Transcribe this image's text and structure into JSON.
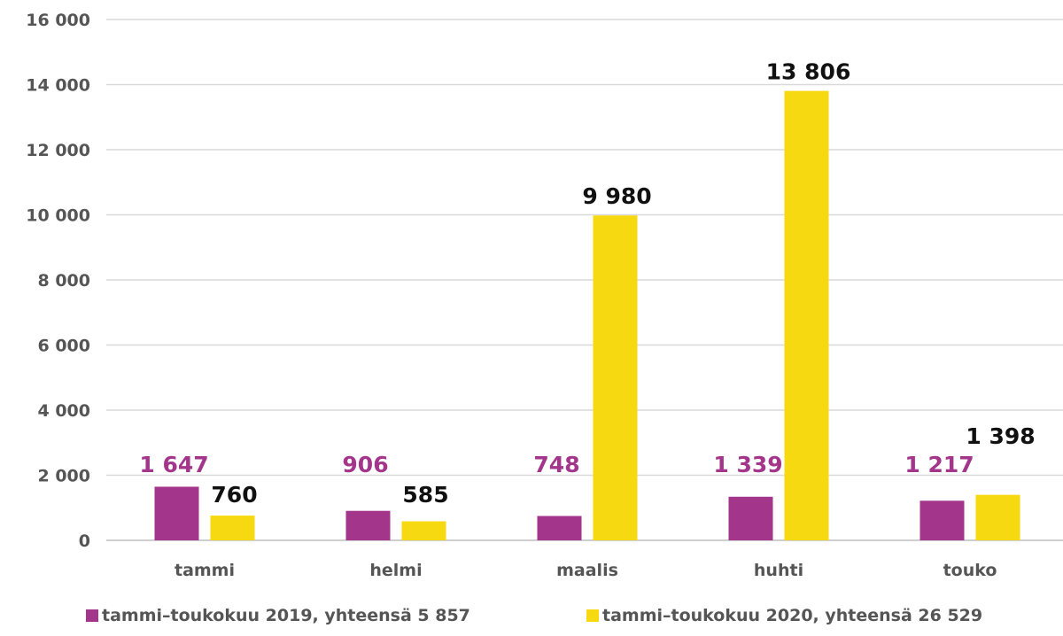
{
  "chart_data": {
    "type": "bar",
    "title": "",
    "xlabel": "",
    "ylabel": "",
    "categories": [
      "tammi",
      "helmi",
      "maalis",
      "huhti",
      "touko"
    ],
    "ylim": [
      0,
      16000
    ],
    "yticks": [
      0,
      2000,
      4000,
      6000,
      8000,
      10000,
      12000,
      14000,
      16000
    ],
    "ytick_labels": [
      "0",
      "2 000",
      "4 000",
      "6 000",
      "8 000",
      "10 000",
      "12 000",
      "14 000",
      "16 000"
    ],
    "grid": true,
    "legend_position": "bottom",
    "series": [
      {
        "name": "tammi–toukokuu 2019, yhteensä 5 857",
        "color": "#a3368a",
        "label_color": "#a3368a",
        "values": [
          1647,
          906,
          748,
          1339,
          1217
        ],
        "labels": [
          "1 647",
          "906",
          "748",
          "1 339",
          "1 217"
        ]
      },
      {
        "name": "tammi–toukokuu 2020, yhteensä 26 529",
        "color": "#f7d911",
        "label_color": "#111111",
        "values": [
          760,
          585,
          9980,
          13806,
          1398
        ],
        "labels": [
          "760",
          "585",
          "9 980",
          "13 806",
          "1 398"
        ]
      }
    ]
  }
}
